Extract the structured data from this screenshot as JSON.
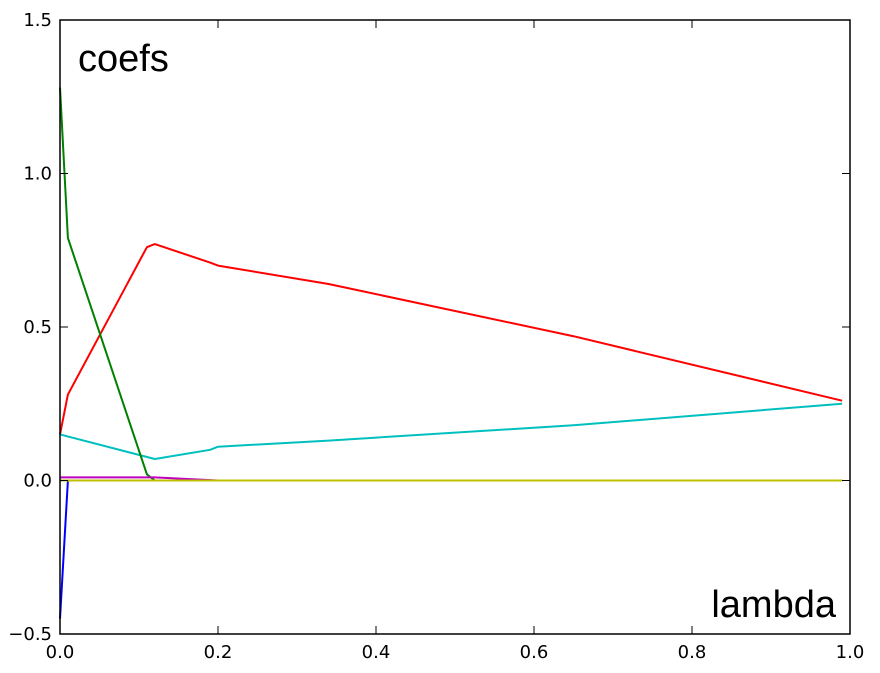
{
  "chart_data": {
    "type": "line",
    "title": "",
    "xlabel": "lambda",
    "ylabel": "coefs",
    "xlim": [
      0.0,
      1.0
    ],
    "ylim": [
      -0.5,
      1.5
    ],
    "xticks": [
      "0.0",
      "0.2",
      "0.4",
      "0.6",
      "0.8",
      "1.0"
    ],
    "yticks": [
      "−0.5",
      "0.0",
      "0.5",
      "1.0",
      "1.5"
    ],
    "grid": false,
    "legend": "none",
    "series": [
      {
        "color": "#ff0000",
        "x": [
          0.0,
          0.01,
          0.11,
          0.12,
          0.19,
          0.2,
          0.34,
          0.65,
          0.99
        ],
        "y": [
          0.15,
          0.28,
          0.76,
          0.77,
          0.71,
          0.7,
          0.64,
          0.47,
          0.26
        ]
      },
      {
        "color": "#00bfbf",
        "x": [
          0.0,
          0.12,
          0.19,
          0.2,
          0.34,
          0.65,
          0.99
        ],
        "y": [
          0.15,
          0.07,
          0.1,
          0.11,
          0.13,
          0.18,
          0.25
        ]
      },
      {
        "color": "#008000",
        "x": [
          0.0,
          0.01,
          0.11,
          0.12,
          0.99
        ],
        "y": [
          1.28,
          0.79,
          0.02,
          0.0,
          0.0
        ]
      },
      {
        "color": "#0000ff",
        "x": [
          0.0,
          0.01,
          0.99
        ],
        "y": [
          -0.45,
          0.0,
          0.0
        ]
      },
      {
        "color": "#bf00bf",
        "x": [
          0.0,
          0.12,
          0.2,
          0.99
        ],
        "y": [
          0.01,
          0.01,
          0.0,
          0.0
        ]
      },
      {
        "color": "#bfbf00",
        "x": [
          0.0,
          0.99
        ],
        "y": [
          0.0,
          0.0
        ]
      }
    ]
  }
}
